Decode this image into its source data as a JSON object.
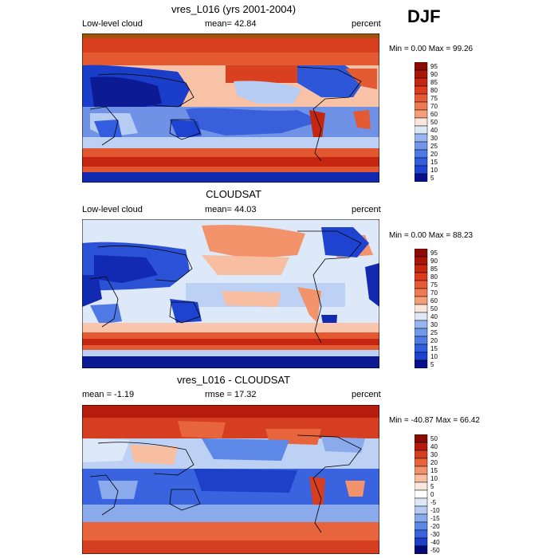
{
  "season": "DJF",
  "colors": {
    "red_ramp": [
      "#fbe6dc",
      "#f9c6ad",
      "#f59f7a",
      "#ef7a51",
      "#e85a35",
      "#dc3b20",
      "#c42611",
      "#a91608",
      "#8a0a04"
    ],
    "blue_ramp": [
      "#dde8f8",
      "#bcd1f3",
      "#97b5ee",
      "#7197ea",
      "#4f7ae6",
      "#335ddf",
      "#1f43d1",
      "#1229b2",
      "#080f8a"
    ],
    "diff_red_ramp": [
      "#fbe6dc",
      "#f7bea2",
      "#f2936c",
      "#e8643c",
      "#d63e22",
      "#b51c0d",
      "#8a0a04"
    ],
    "diff_blue_ramp": [
      "#dde8f8",
      "#b5cbf2",
      "#8aaaec",
      "#5e88e8",
      "#3a63df",
      "#1e3fc8",
      "#0a16a0",
      "#040a78"
    ]
  },
  "chart_data": [
    {
      "type": "heatmap",
      "panel_title": "vres_L016 (yrs 2001-2004)",
      "left_label": "Low-level cloud",
      "center_label": "mean=  42.84",
      "right_label": "percent",
      "minmax": "Min =   0.00 Max =  99.26",
      "colorbar_labels": [
        "95",
        "90",
        "85",
        "80",
        "75",
        "70",
        "60",
        "50",
        "40",
        "30",
        "25",
        "20",
        "15",
        "10",
        "5"
      ]
    },
    {
      "type": "heatmap",
      "panel_title": "CLOUDSAT",
      "left_label": "Low-level cloud",
      "center_label": "mean=  44.03",
      "right_label": "percent",
      "minmax": "Min =   0.00 Max =  88.23",
      "colorbar_labels": [
        "95",
        "90",
        "85",
        "80",
        "75",
        "70",
        "60",
        "50",
        "40",
        "30",
        "25",
        "20",
        "15",
        "10",
        "5"
      ]
    },
    {
      "type": "heatmap",
      "panel_title": "vres_L016 - CLOUDSAT",
      "left_label": "mean =  -1.19",
      "center_label": "rmse =  17.32",
      "right_label": "percent",
      "minmax": "Min = -40.87 Max =  66.42",
      "colorbar_labels": [
        "50",
        "40",
        "30",
        "20",
        "15",
        "10",
        "5",
        "0",
        "-5",
        "-10",
        "-15",
        "-20",
        "-30",
        "-40",
        "-50"
      ]
    }
  ]
}
